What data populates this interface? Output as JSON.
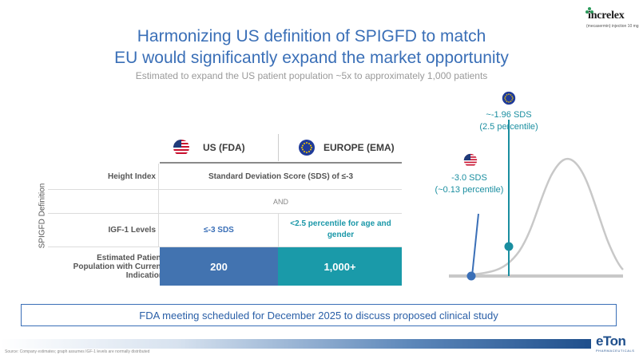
{
  "logo": {
    "brand": "increlex",
    "sub": "(mecasermin) injection 10 mg"
  },
  "title_line1": "Harmonizing US definition of SPIGFD to match",
  "title_line2": "EU would significantly expand the market opportunity",
  "subtitle": "Estimated to expand the US patient population ~5x to approximately 1,000 patients",
  "table": {
    "side_label": "SPIGFD Definition",
    "us_header": "US (FDA)",
    "eu_header": "EUROPE (EMA)",
    "rows": {
      "height_label": "Height Index",
      "height_value": "Standard Deviation Score (SDS) of ≤-3",
      "and": "AND",
      "igf_label": "IGF-1 Levels",
      "igf_us": "≤-3 SDS",
      "igf_eu": "<2.5 percentile for age and gender",
      "pop_label": "Estimated Patient Population with Current Indication",
      "pop_us": "200",
      "pop_eu": "1,000+"
    }
  },
  "curve": {
    "eu_annotation_1": "~-1.96 SDS",
    "eu_annotation_2": "(2.5 percentile)",
    "us_annotation_1": "-3.0 SDS",
    "us_annotation_2": "(~0.13 percentile)"
  },
  "banner": "FDA meeting scheduled for December 2025 to discuss proposed clinical study",
  "source": "Source: Company estimates; graph assumes IGF-1 levels are normally distributed",
  "eton": {
    "name": "eTon",
    "sub": "PHARMACEUTICALS"
  },
  "colors": {
    "blue": "#3a6fb7",
    "teal": "#1a9aa9",
    "navy": "#1f4f8c"
  }
}
